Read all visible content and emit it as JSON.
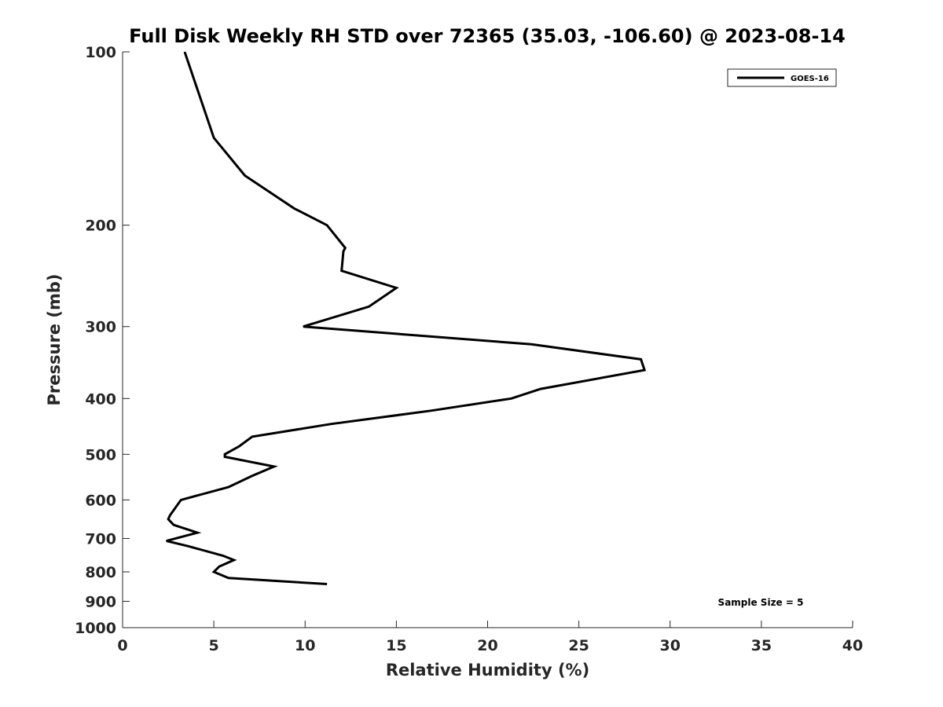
{
  "chart_data": {
    "type": "line",
    "title": "Full Disk Weekly RH STD over 72365 (35.03, -106.60) @ 2023-08-14",
    "xlabel": "Relative Humidity (%)",
    "ylabel": "Pressure (mb)",
    "xlim": [
      0,
      40
    ],
    "ylim": [
      100,
      1000
    ],
    "y_scale": "log",
    "y_reversed": true,
    "grid": false,
    "legend_position": "top-right",
    "x_ticks": [
      "0",
      "5",
      "10",
      "15",
      "20",
      "25",
      "30",
      "35",
      "40"
    ],
    "y_ticks": [
      "100",
      "200",
      "300",
      "400",
      "500",
      "600",
      "700",
      "800",
      "900",
      "1000"
    ],
    "series": [
      {
        "name": "GOES-16",
        "color": "#000000",
        "x": [
          3.4,
          5.0,
          6.7,
          9.4,
          11.2,
          12.2,
          12.1,
          12.0,
          15.0,
          13.5,
          9.9,
          22.4,
          28.4,
          28.6,
          22.9,
          21.3,
          16.9,
          11.4,
          7.1,
          6.4,
          5.6,
          5.6,
          8.3,
          7.1,
          5.8,
          3.2,
          2.6,
          2.5,
          2.8,
          4.1,
          2.4,
          3.6,
          5.5,
          6.1,
          5.3,
          5.0,
          5.8,
          11.2
        ],
        "y": [
          100,
          141,
          164,
          187,
          200,
          219,
          222,
          240,
          257,
          277,
          300,
          322,
          342,
          357,
          385,
          400,
          420,
          443,
          466,
          484,
          500,
          505,
          525,
          545,
          570,
          600,
          638,
          648,
          663,
          684,
          707,
          722,
          750,
          763,
          783,
          800,
          820,
          840
        ]
      }
    ],
    "annotations": [
      "Sample Size = 5"
    ]
  }
}
